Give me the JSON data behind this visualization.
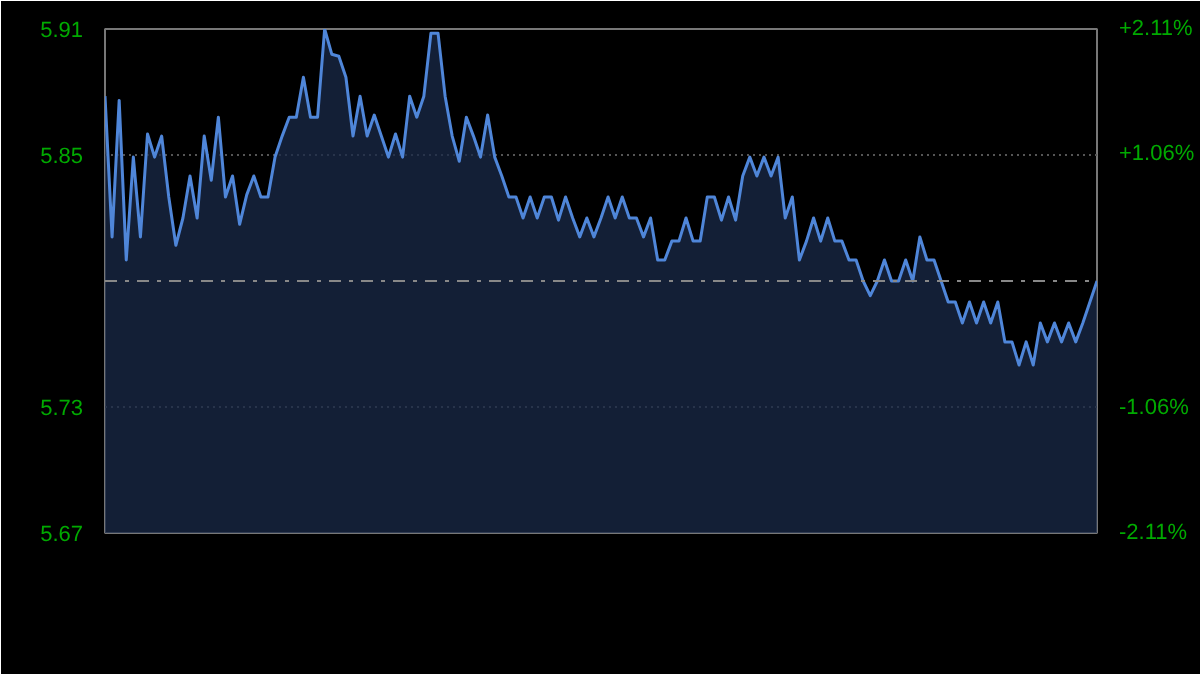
{
  "chart_data": {
    "type": "area",
    "categories": [
      null,
      null,
      null,
      null,
      null,
      null,
      null,
      null,
      null,
      null,
      null,
      null,
      null,
      null,
      null,
      null,
      null,
      null,
      null,
      null,
      null,
      null,
      null,
      null,
      null,
      null,
      null,
      null,
      null,
      null,
      null,
      null,
      null,
      null,
      null,
      null,
      null,
      null,
      null,
      null,
      null,
      null,
      null,
      null,
      null,
      null,
      null,
      null,
      null,
      null,
      null,
      null,
      null,
      null,
      null,
      null,
      null,
      null,
      null,
      null,
      null,
      null,
      null,
      null,
      null,
      null,
      null,
      null,
      null,
      null,
      null,
      null,
      null,
      null,
      null,
      null,
      null,
      null,
      null,
      null,
      null,
      null,
      null,
      null,
      null,
      null,
      null,
      null,
      null,
      null,
      null,
      null,
      null,
      null,
      null,
      null,
      null,
      null,
      null,
      null,
      null,
      null,
      null,
      null,
      null,
      null,
      null,
      null,
      null,
      null,
      null,
      null,
      null,
      null,
      null,
      null,
      null,
      null,
      null,
      null,
      null,
      null,
      null,
      null,
      null,
      null,
      null,
      null,
      null,
      null,
      null,
      null,
      null,
      null,
      null,
      null,
      null,
      null,
      null,
      null,
      null
    ],
    "series": [
      {
        "color": "#4f86d9",
        "values": [
          5.878,
          5.811,
          5.876,
          5.8,
          5.849,
          5.811,
          5.86,
          5.849,
          5.859,
          5.83,
          5.807,
          5.82,
          5.84,
          5.82,
          5.859,
          5.838,
          5.868,
          5.83,
          5.84,
          5.817,
          5.831,
          5.84,
          5.83,
          5.83,
          5.849,
          5.859,
          5.868,
          5.868,
          5.887,
          5.868,
          5.868,
          5.91,
          5.898,
          5.897,
          5.887,
          5.859,
          5.878,
          5.859,
          5.869,
          5.859,
          5.849,
          5.86,
          5.849,
          5.878,
          5.868,
          5.878,
          5.908,
          5.908,
          5.878,
          5.859,
          5.847,
          5.868,
          5.859,
          5.849,
          5.869,
          5.849,
          5.84,
          5.83,
          5.83,
          5.82,
          5.83,
          5.82,
          5.83,
          5.83,
          5.819,
          5.83,
          5.82,
          5.811,
          5.82,
          5.811,
          5.82,
          5.83,
          5.82,
          5.83,
          5.82,
          5.82,
          5.811,
          5.82,
          5.8,
          5.8,
          5.809,
          5.809,
          5.82,
          5.809,
          5.809,
          5.83,
          5.83,
          5.819,
          5.83,
          5.819,
          5.84,
          5.849,
          5.84,
          5.849,
          5.84,
          5.849,
          5.82,
          5.83,
          5.8,
          5.809,
          5.82,
          5.809,
          5.82,
          5.809,
          5.809,
          5.8,
          5.8,
          5.79,
          5.783,
          5.79,
          5.8,
          5.79,
          5.79,
          5.8,
          5.79,
          5.811,
          5.8,
          5.8,
          5.79,
          5.78,
          5.78,
          5.77,
          5.78,
          5.77,
          5.78,
          5.77,
          5.78,
          5.761,
          5.761,
          5.75,
          5.761,
          5.75,
          5.77,
          5.761,
          5.77,
          5.761,
          5.77,
          5.761,
          5.77,
          5.78,
          5.79
        ]
      }
    ],
    "ylim": [
      5.67,
      5.91
    ],
    "yticks": [
      5.67,
      5.73,
      5.85,
      5.91
    ],
    "y2lim": [
      -2.11,
      2.11
    ],
    "y2ticks": [
      {
        "value": -2.11,
        "label": "-2.11%"
      },
      {
        "value": -1.06,
        "label": "-1.06%"
      },
      {
        "value": 1.06,
        "label": "+1.06%"
      },
      {
        "value": 2.11,
        "label": "+2.11%"
      }
    ],
    "ref_lines": [
      {
        "axis": "y",
        "value": 5.79,
        "line_style": "dashdot"
      }
    ],
    "grid": "y",
    "tick_labels": "y",
    "line_style": "solid"
  }
}
